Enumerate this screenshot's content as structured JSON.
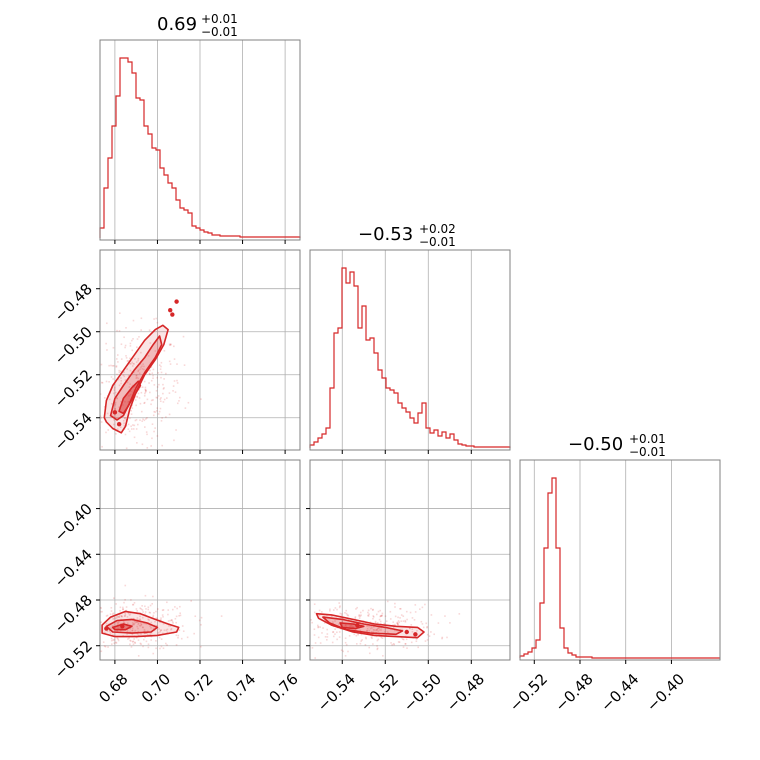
{
  "colors": {
    "series": "#d62728",
    "fill": "#d62728",
    "grid": "#b0b0b0",
    "frame": "#808080"
  },
  "chart_data": {
    "type": "corner",
    "grid": true,
    "parameters": [
      {
        "title_main": "0.69",
        "title_up": "+0.01",
        "title_down": "−0.01",
        "range": [
          0.673,
          0.767
        ],
        "ticks": [
          0.68,
          0.7,
          0.72,
          0.74,
          0.76
        ],
        "tick_labels": [
          "0.68",
          "0.70",
          "0.72",
          "0.74",
          "0.76"
        ],
        "histogram": {
          "type": "step-histogram",
          "bin_start": 0.673,
          "bin_width": 0.00188,
          "counts": [
            10,
            50,
            80,
            112,
            142,
            180,
            180,
            176,
            165,
            140,
            138,
            112,
            104,
            90,
            88,
            70,
            63,
            55,
            50,
            38,
            30,
            28,
            25,
            12,
            10,
            8,
            6,
            5,
            3,
            3,
            2,
            2,
            2,
            2,
            2,
            1,
            1,
            1,
            1,
            1,
            1,
            1,
            1,
            1,
            1,
            1,
            1,
            1,
            1,
            1
          ]
        }
      },
      {
        "title_main": "−0.53",
        "title_up": "+0.02",
        "title_down": "−0.01",
        "range": [
          -0.555,
          -0.462
        ],
        "ticks": [
          -0.54,
          -0.52,
          -0.5,
          -0.48
        ],
        "tick_labels": [
          "−0.54",
          "−0.52",
          "−0.50",
          "−0.48"
        ],
        "histogram": {
          "type": "step-histogram",
          "bin_start": -0.555,
          "bin_width": 0.00186,
          "counts": [
            3,
            6,
            10,
            14,
            20,
            60,
            115,
            120,
            180,
            165,
            176,
            162,
            120,
            142,
            108,
            110,
            95,
            78,
            70,
            60,
            58,
            55,
            45,
            40,
            36,
            30,
            25,
            35,
            45,
            20,
            15,
            18,
            12,
            16,
            10,
            14,
            8,
            4,
            3,
            2,
            2,
            1,
            1,
            1,
            1,
            1,
            1,
            1,
            1,
            1
          ]
        }
      },
      {
        "title_main": "−0.50",
        "title_up": "+0.01",
        "title_down": "−0.01",
        "range": [
          -0.5325,
          -0.3575
        ],
        "ticks": [
          -0.52,
          -0.48,
          -0.44,
          -0.4
        ],
        "tick_labels": [
          "−0.52",
          "−0.48",
          "−0.44",
          "−0.40"
        ],
        "histogram": {
          "type": "step-histogram",
          "bin_start": -0.5325,
          "bin_width": 0.0035,
          "counts": [
            2,
            4,
            6,
            10,
            18,
            55,
            110,
            165,
            180,
            110,
            30,
            10,
            5,
            3,
            1,
            1,
            1,
            1,
            0,
            0,
            0,
            0,
            0,
            0,
            0,
            0,
            0,
            0,
            0,
            0,
            0,
            0,
            0,
            0,
            0,
            0,
            0,
            0,
            0,
            0,
            0,
            0,
            0,
            0,
            0,
            0,
            0,
            0,
            0,
            0
          ]
        }
      }
    ],
    "pairs": [
      {
        "row": 1,
        "col": 0,
        "x_param": 0,
        "y_param": 1,
        "contours": {
          "outer": [
            [
              0.675,
              -0.54
            ],
            [
              0.676,
              -0.532
            ],
            [
              0.679,
              -0.525
            ],
            [
              0.684,
              -0.518
            ],
            [
              0.689,
              -0.511
            ],
            [
              0.694,
              -0.504
            ],
            [
              0.699,
              -0.499
            ],
            [
              0.7025,
              -0.497
            ],
            [
              0.705,
              -0.499
            ],
            [
              0.703,
              -0.506
            ],
            [
              0.699,
              -0.513
            ],
            [
              0.694,
              -0.52
            ],
            [
              0.69,
              -0.528
            ],
            [
              0.687,
              -0.536
            ],
            [
              0.685,
              -0.544
            ],
            [
              0.683,
              -0.547
            ],
            [
              0.679,
              -0.545
            ],
            [
              0.676,
              -0.542
            ]
          ],
          "mid": [
            [
              0.678,
              -0.539
            ],
            [
              0.68,
              -0.531
            ],
            [
              0.684,
              -0.525
            ],
            [
              0.689,
              -0.518
            ],
            [
              0.694,
              -0.512
            ],
            [
              0.698,
              -0.506
            ],
            [
              0.701,
              -0.502
            ],
            [
              0.702,
              -0.506
            ],
            [
              0.699,
              -0.512
            ],
            [
              0.694,
              -0.519
            ],
            [
              0.69,
              -0.526
            ],
            [
              0.687,
              -0.533
            ],
            [
              0.684,
              -0.539
            ],
            [
              0.681,
              -0.541
            ]
          ],
          "inner": [
            [
              0.682,
              -0.537
            ],
            [
              0.684,
              -0.531
            ],
            [
              0.688,
              -0.526
            ],
            [
              0.691,
              -0.523
            ],
            [
              0.692,
              -0.525
            ],
            [
              0.689,
              -0.53
            ],
            [
              0.686,
              -0.535
            ],
            [
              0.684,
              -0.538
            ]
          ],
          "islands": [
            [
              0.709,
              -0.486
            ],
            [
              0.706,
              -0.49
            ],
            [
              0.707,
              -0.492
            ],
            [
              0.682,
              -0.543
            ],
            [
              0.68,
              -0.5375
            ]
          ]
        },
        "scatter_center": [
          0.689,
          -0.527
        ],
        "scatter_spread": [
          0.008,
          0.012
        ]
      },
      {
        "row": 2,
        "col": 0,
        "x_param": 0,
        "y_param": 2,
        "contours": {
          "outer": [
            [
              0.674,
              -0.502
            ],
            [
              0.678,
              -0.495
            ],
            [
              0.685,
              -0.49
            ],
            [
              0.692,
              -0.492
            ],
            [
              0.699,
              -0.497
            ],
            [
              0.705,
              -0.501
            ],
            [
              0.71,
              -0.504
            ],
            [
              0.709,
              -0.508
            ],
            [
              0.7,
              -0.511
            ],
            [
              0.69,
              -0.512
            ],
            [
              0.68,
              -0.512
            ],
            [
              0.674,
              -0.509
            ]
          ],
          "mid": [
            [
              0.676,
              -0.503
            ],
            [
              0.681,
              -0.498
            ],
            [
              0.688,
              -0.497
            ],
            [
              0.695,
              -0.5
            ],
            [
              0.7,
              -0.504
            ],
            [
              0.697,
              -0.508
            ],
            [
              0.688,
              -0.509
            ],
            [
              0.679,
              -0.508
            ]
          ],
          "inner": [
            [
              0.679,
              -0.504
            ],
            [
              0.684,
              -0.501
            ],
            [
              0.688,
              -0.503
            ],
            [
              0.685,
              -0.506
            ],
            [
              0.68,
              -0.506
            ]
          ],
          "islands": [
            [
              0.6835,
              -0.503
            ],
            [
              0.676,
              -0.505
            ]
          ]
        },
        "scatter_center": [
          0.69,
          -0.502
        ],
        "scatter_spread": [
          0.009,
          0.009
        ]
      },
      {
        "row": 2,
        "col": 1,
        "x_param": 1,
        "y_param": 2,
        "contours": {
          "outer": [
            [
              -0.552,
              -0.492
            ],
            [
              -0.545,
              -0.493
            ],
            [
              -0.535,
              -0.497
            ],
            [
              -0.525,
              -0.501
            ],
            [
              -0.515,
              -0.503
            ],
            [
              -0.505,
              -0.504
            ],
            [
              -0.502,
              -0.508
            ],
            [
              -0.505,
              -0.513
            ],
            [
              -0.515,
              -0.512
            ],
            [
              -0.525,
              -0.511
            ],
            [
              -0.535,
              -0.508
            ],
            [
              -0.545,
              -0.502
            ],
            [
              -0.551,
              -0.496
            ]
          ],
          "mid": [
            [
              -0.549,
              -0.495
            ],
            [
              -0.54,
              -0.497
            ],
            [
              -0.53,
              -0.501
            ],
            [
              -0.52,
              -0.504
            ],
            [
              -0.512,
              -0.507
            ],
            [
              -0.515,
              -0.51
            ],
            [
              -0.527,
              -0.509
            ],
            [
              -0.538,
              -0.506
            ],
            [
              -0.546,
              -0.5
            ]
          ],
          "inner": [
            [
              -0.541,
              -0.5
            ],
            [
              -0.535,
              -0.501
            ],
            [
              -0.53,
              -0.503
            ],
            [
              -0.534,
              -0.505
            ],
            [
              -0.54,
              -0.504
            ]
          ],
          "islands": [
            [
              -0.533,
              -0.502
            ],
            [
              -0.51,
              -0.508
            ],
            [
              -0.506,
              -0.51
            ]
          ]
        },
        "scatter_center": [
          -0.53,
          -0.503
        ],
        "scatter_spread": [
          0.012,
          0.008
        ]
      }
    ]
  }
}
